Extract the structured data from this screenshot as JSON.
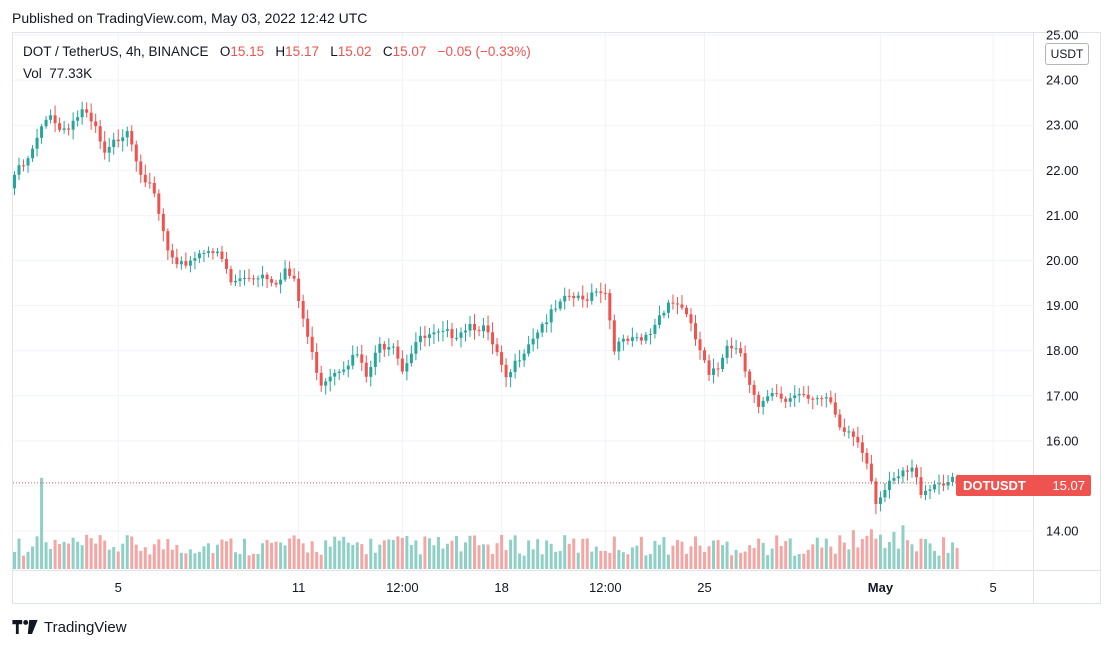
{
  "published": "Published on TradingView.com, May 03, 2022 12:42 UTC",
  "legend": {
    "symbol": "DOT / TetherUS, 4h, BINANCE",
    "o_label": "O",
    "o_value": "15.15",
    "h_label": "H",
    "h_value": "15.17",
    "l_label": "L",
    "l_value": "15.02",
    "c_label": "C",
    "c_value": "15.07",
    "change": "−0.05 (−0.33%)",
    "vol_label": "Vol",
    "vol_value": "77.33K"
  },
  "currency": "USDT",
  "price_tag": {
    "symbol": "DOTUSDT",
    "value": "15.07"
  },
  "footer": {
    "brand": "TradingView",
    "logo_icon": "tradingview-logo-icon"
  },
  "colors": {
    "up": "#26a69a",
    "down": "#ef5350",
    "up_vol": "#8fd0c6",
    "down_vol": "#f5a6a4",
    "grid": "#f0f3fa"
  },
  "chart_data": {
    "type": "candlestick",
    "timeframe": "4h",
    "ylim": [
      13.2,
      25.0
    ],
    "y_ticks": [
      "14.00",
      "15.00",
      "16.00",
      "17.00",
      "18.00",
      "19.00",
      "20.00",
      "21.00",
      "22.00",
      "23.00",
      "24.00",
      "25.00"
    ],
    "x_ticks": [
      {
        "label": "5",
        "index": 23,
        "bold": false
      },
      {
        "label": "11",
        "index": 63,
        "bold": false
      },
      {
        "label": "12:00",
        "index": 86,
        "bold": false
      },
      {
        "label": "18",
        "index": 108,
        "bold": false
      },
      {
        "label": "12:00",
        "index": 131,
        "bold": false
      },
      {
        "label": "25",
        "index": 153,
        "bold": false
      },
      {
        "label": "May",
        "index": 192,
        "bold": true
      },
      {
        "label": "5",
        "index": 217,
        "bold": false
      }
    ],
    "last_price": 15.07,
    "waypoints": [
      [
        0,
        21.9
      ],
      [
        3,
        22.2
      ],
      [
        6,
        22.9
      ],
      [
        8,
        23.3
      ],
      [
        10,
        22.9
      ],
      [
        12,
        23.0
      ],
      [
        15,
        23.3
      ],
      [
        18,
        22.9
      ],
      [
        20,
        22.3
      ],
      [
        22,
        22.6
      ],
      [
        25,
        22.95
      ],
      [
        28,
        22.0
      ],
      [
        31,
        21.4
      ],
      [
        34,
        20.2
      ],
      [
        36,
        19.8
      ],
      [
        40,
        20.1
      ],
      [
        43,
        20.3
      ],
      [
        46,
        20.0
      ],
      [
        48,
        19.5
      ],
      [
        51,
        19.6
      ],
      [
        55,
        19.7
      ],
      [
        58,
        19.55
      ],
      [
        60,
        19.8
      ],
      [
        62,
        19.5
      ],
      [
        64,
        18.7
      ],
      [
        66,
        17.9
      ],
      [
        68,
        17.3
      ],
      [
        70,
        17.5
      ],
      [
        73,
        17.7
      ],
      [
        76,
        17.9
      ],
      [
        78,
        17.4
      ],
      [
        81,
        18.1
      ],
      [
        84,
        18.2
      ],
      [
        86,
        17.6
      ],
      [
        89,
        18.2
      ],
      [
        92,
        18.3
      ],
      [
        95,
        18.35
      ],
      [
        98,
        18.4
      ],
      [
        101,
        18.6
      ],
      [
        104,
        18.5
      ],
      [
        107,
        17.9
      ],
      [
        109,
        17.3
      ],
      [
        112,
        17.9
      ],
      [
        114,
        18.2
      ],
      [
        117,
        18.6
      ],
      [
        120,
        18.9
      ],
      [
        123,
        19.2
      ],
      [
        126,
        19.1
      ],
      [
        129,
        19.4
      ],
      [
        131,
        19.3
      ],
      [
        133,
        18.1
      ],
      [
        136,
        18.2
      ],
      [
        139,
        18.2
      ],
      [
        141,
        18.4
      ],
      [
        143,
        18.8
      ],
      [
        145,
        19.1
      ],
      [
        148,
        19.0
      ],
      [
        150,
        18.5
      ],
      [
        152,
        18.0
      ],
      [
        154,
        17.4
      ],
      [
        156,
        17.6
      ],
      [
        158,
        18.2
      ],
      [
        161,
        18.0
      ],
      [
        163,
        17.3
      ],
      [
        165,
        16.7
      ],
      [
        168,
        17.0
      ],
      [
        171,
        16.9
      ],
      [
        174,
        17.1
      ],
      [
        177,
        17.0
      ],
      [
        179,
        16.9
      ],
      [
        181,
        16.8
      ],
      [
        183,
        16.2
      ],
      [
        185,
        16.2
      ],
      [
        187,
        16.0
      ],
      [
        189,
        15.6
      ],
      [
        191,
        14.7
      ],
      [
        193,
        14.9
      ],
      [
        195,
        15.1
      ],
      [
        197,
        15.25
      ],
      [
        199,
        15.35
      ],
      [
        201,
        14.9
      ],
      [
        203,
        15.0
      ],
      [
        205,
        15.1
      ],
      [
        207,
        15.1
      ],
      [
        209,
        15.07
      ]
    ],
    "volume_spike_index": 6
  }
}
